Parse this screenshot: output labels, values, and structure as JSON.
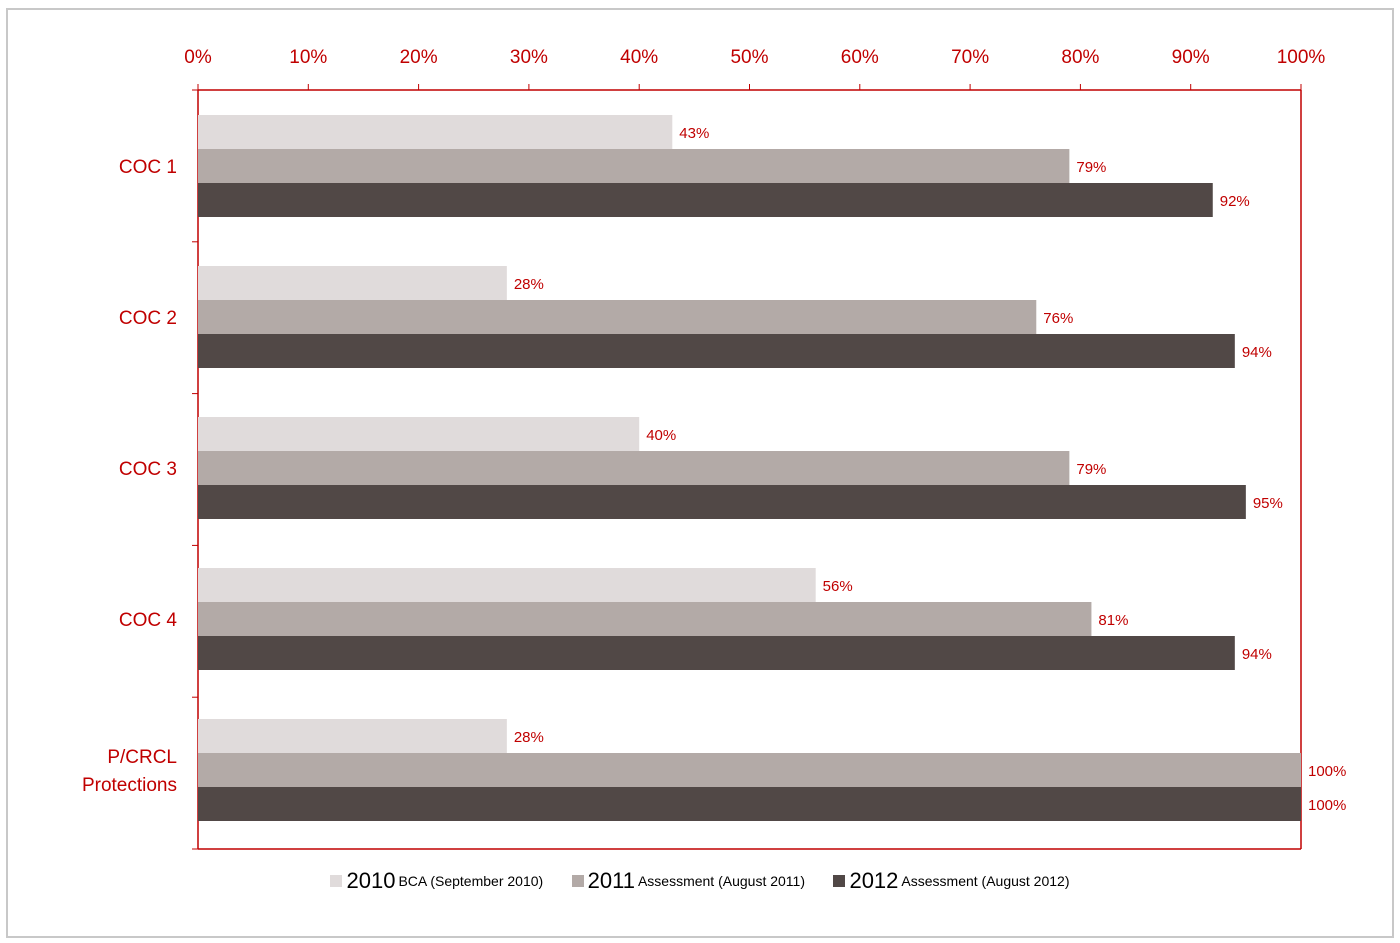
{
  "chart_data": {
    "type": "bar",
    "orientation": "horizontal",
    "categories": [
      "COC 1",
      "COC 2",
      "COC 3",
      "COC 4",
      "P/CRCL Protections"
    ],
    "category_lines": [
      [
        "COC 1"
      ],
      [
        "COC 2"
      ],
      [
        "COC 3"
      ],
      [
        "COC 4"
      ],
      [
        "P/CRCL",
        "Protections"
      ]
    ],
    "series": [
      {
        "year": "2010",
        "desc": "BCA (September 2010)",
        "color": "#e0dbdb",
        "values": [
          43,
          28,
          40,
          56,
          28
        ]
      },
      {
        "year": "2011",
        "desc": "Assessment (August 2011)",
        "color": "#b3aaa7",
        "values": [
          79,
          76,
          79,
          81,
          100
        ]
      },
      {
        "year": "2012",
        "desc": "Assessment (August 2012)",
        "color": "#514846",
        "values": [
          92,
          94,
          95,
          94,
          100
        ]
      }
    ],
    "value_labels": [
      [
        "43%",
        "28%",
        "40%",
        "56%",
        "28%"
      ],
      [
        "79%",
        "76%",
        "79%",
        "81%",
        "100%"
      ],
      [
        "92%",
        "94%",
        "95%",
        "94%",
        "100%"
      ]
    ],
    "x_ticks": [
      "0%",
      "10%",
      "20%",
      "30%",
      "40%",
      "50%",
      "60%",
      "70%",
      "80%",
      "90%",
      "100%"
    ],
    "xlim": [
      0,
      100
    ],
    "axis_position": "top",
    "grid": false,
    "legend_position": "bottom",
    "accent_color": "#c00000"
  }
}
